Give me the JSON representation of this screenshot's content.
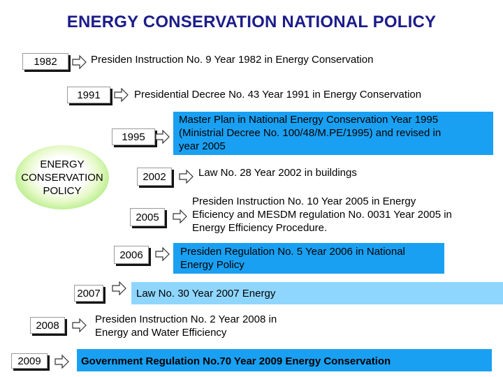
{
  "title": "ENERGY CONSERVATION NATIONAL POLICY",
  "center_label": [
    "ENERGY",
    "CONSERVATION",
    "POLICY"
  ],
  "timeline": [
    {
      "year": "1982",
      "text": [
        "Presiden Instruction No. 9 Year 1982 in Energy Conservation"
      ]
    },
    {
      "year": "1991",
      "text": [
        "Presidential Decree No. 43 Year 1991 in Energy Conservation"
      ]
    },
    {
      "year": "1995",
      "text": [
        "Master Plan in National Energy Conservation  Year 1995",
        "(Ministrial Decree No. 100/48/M.PE/1995)  and revised in",
        "year 2005"
      ]
    },
    {
      "year": "2002",
      "text": [
        "Law No. 28 Year 2002 in buildings"
      ]
    },
    {
      "year": "2005",
      "text": [
        "Presiden Instruction No. 10 Year 2005 in Energy",
        "Eficiency and MESDM regulation No. 0031 Year 2005 in",
        "Energy Efficiency Procedure."
      ]
    },
    {
      "year": "2006",
      "text": [
        "Presiden Regulation No. 5 Year 2006 in National",
        "Energy Policy"
      ]
    },
    {
      "year": "2007",
      "text": [
        "Law No. 30 Year 2007  Energy"
      ]
    },
    {
      "year": "2008",
      "text": [
        "Presiden Instruction No. 2 Year 2008 in",
        "Energy and Water Efficiency"
      ]
    },
    {
      "year": "2009",
      "text": [
        "Government Regulation No.70 Year 2009 Energy Conservation"
      ]
    }
  ],
  "colors": {
    "title": "#1c1c8a",
    "blue": "#1aa0f2",
    "light_blue": "#8fd6ff",
    "oval_green": "#7fdc49"
  }
}
